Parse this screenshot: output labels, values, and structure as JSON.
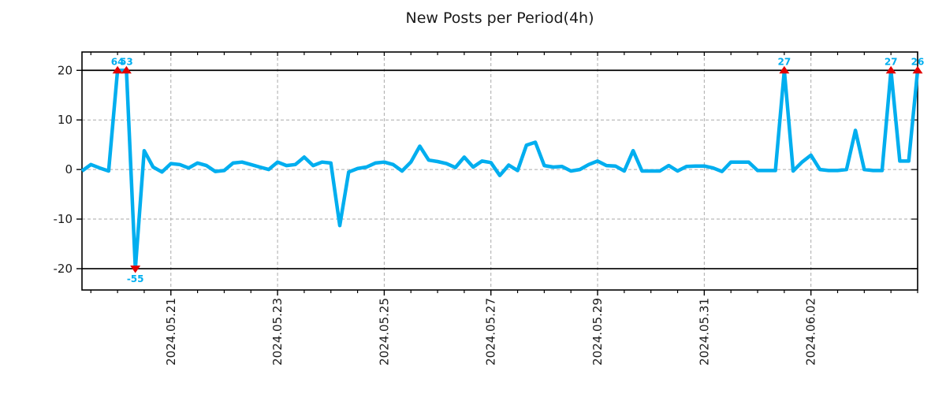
{
  "chart_data": {
    "type": "line",
    "title": "New Posts per Period(4h)",
    "period_label": "4h",
    "x_tick_labels": [
      "2024.05.21",
      "2024.05.23",
      "2024.05.25",
      "2024.05.27",
      "2024.05.29",
      "2024.05.31",
      "2024.06.02"
    ],
    "x_tick_indices": [
      10,
      22,
      34,
      46,
      58,
      70,
      82
    ],
    "minor_tick_step": 3,
    "minor_tick_phase": 1,
    "y_ticks": [
      20,
      10,
      0,
      -10,
      -20
    ],
    "y_grid_ticks": [
      10,
      0,
      -10
    ],
    "ylim": [
      -24.3,
      23.7
    ],
    "clip_value": 20,
    "clip_line_values": [
      20,
      -20
    ],
    "values": [
      -0.3,
      1.0,
      0.3,
      -0.3,
      64,
      53,
      -55,
      3.8,
      0.5,
      -0.5,
      1.2,
      1.0,
      0.3,
      1.3,
      0.8,
      -0.4,
      -0.2,
      1.3,
      1.5,
      1.0,
      0.5,
      0.0,
      1.5,
      0.8,
      1.0,
      2.5,
      0.8,
      1.5,
      1.3,
      -11.3,
      -0.5,
      0.2,
      0.5,
      1.3,
      1.5,
      1.0,
      -0.3,
      1.5,
      4.7,
      1.9,
      1.6,
      1.2,
      0.4,
      2.5,
      0.5,
      1.7,
      1.4,
      -1.2,
      0.9,
      -0.2,
      4.9,
      5.5,
      0.8,
      0.5,
      0.6,
      -0.3,
      0.0,
      1.0,
      1.7,
      0.8,
      0.7,
      -0.3,
      3.8,
      -0.3,
      -0.3,
      -0.3,
      0.8,
      -0.3,
      0.6,
      0.7,
      0.7,
      0.3,
      -0.4,
      1.5,
      1.5,
      1.5,
      -0.2,
      -0.2,
      -0.2,
      27,
      -0.3,
      1.5,
      2.9,
      0.0,
      -0.2,
      -0.2,
      0.0,
      7.9,
      0.0,
      -0.2,
      -0.2,
      27,
      1.7,
      1.7,
      26
    ],
    "clipped_point_labels": [
      "64",
      "53",
      "-55",
      "27",
      "27",
      "26"
    ],
    "colors": {
      "line": "#00AEEF",
      "annotation_text": "#00AEEF",
      "marker": "#E10000",
      "grid": "#aaaaaa",
      "axis": "#000000",
      "tick_text": "#1a1a1a",
      "title_text": "#1a1a1a",
      "background": "#ffffff"
    },
    "legend": null,
    "grid": "on"
  }
}
